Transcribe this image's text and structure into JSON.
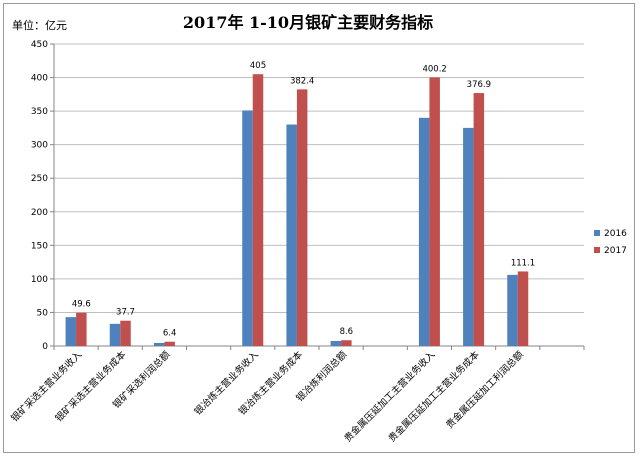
{
  "chart_data": {
    "type": "bar",
    "title": "2017年 1-10月银矿主要财务指标",
    "unit_label": "单位：亿元",
    "ylim": [
      0,
      450
    ],
    "y_ticks": [
      0,
      50,
      100,
      150,
      200,
      250,
      300,
      350,
      400,
      450
    ],
    "grid": true,
    "legend_position": "right",
    "categories": [
      "银矿采选主营业务收入",
      "银矿采选主营业务成本",
      "银矿采选利润总额",
      "",
      "银冶炼主营业务收入",
      "银冶炼主营业务成本",
      "银冶炼利润总额",
      "",
      "贵金属压延加工主营业务收入",
      "贵金属压延加工主营业务成本",
      "贵金属压延加工利润总额",
      ""
    ],
    "series": [
      {
        "name": "2016",
        "color": "#4f81bd",
        "values": [
          43,
          33,
          4.5,
          null,
          351,
          330,
          7.5,
          null,
          340,
          325,
          106,
          null
        ]
      },
      {
        "name": "2017",
        "color": "#c0504d",
        "values": [
          49.6,
          37.7,
          6.4,
          null,
          405,
          382.4,
          8.6,
          null,
          400.2,
          376.9,
          111.1,
          null
        ]
      }
    ],
    "data_labels": [
      "49.6",
      "37.7",
      "6.4",
      "",
      "405",
      "382.4",
      "8.6",
      "",
      "400.2",
      "376.9",
      "111.1",
      ""
    ]
  }
}
